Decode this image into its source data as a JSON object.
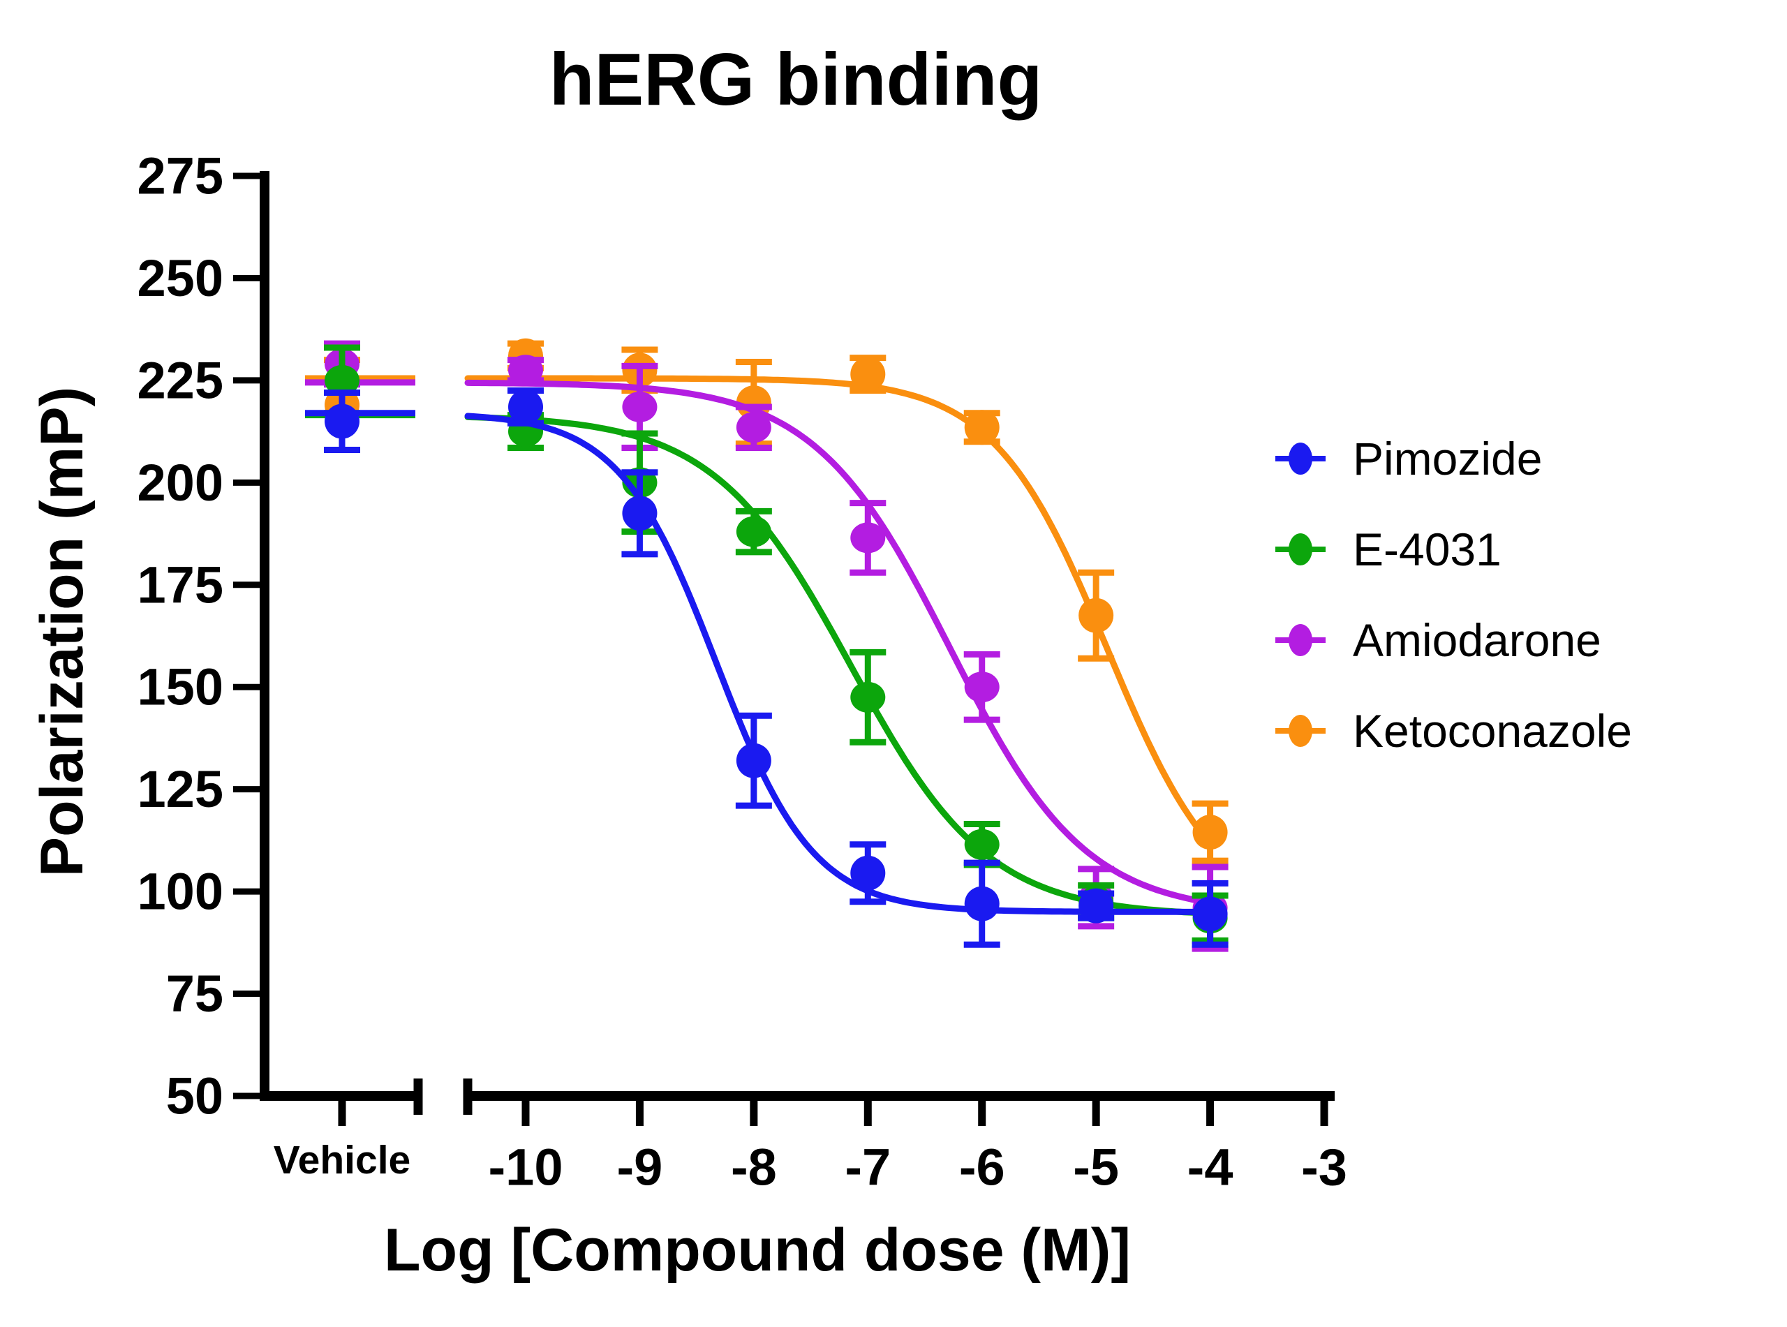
{
  "chart_data": {
    "type": "scatter-line",
    "title": "hERG binding",
    "xlabel": "Log [Compound dose (M)]",
    "ylabel": "Polarization (mP)",
    "x_axis": {
      "vehicle_label": "Vehicle",
      "tick_logs": [
        -10,
        -9,
        -8,
        -7,
        -6,
        -5,
        -4,
        -3
      ],
      "tick_labels": [
        "-10",
        "-9",
        "-8",
        "-7",
        "-6",
        "-5",
        "-4",
        "-3"
      ],
      "broken_axis": true
    },
    "y_axis": {
      "ticks": [
        275,
        250,
        225,
        200,
        175,
        150,
        125,
        100,
        75,
        50
      ],
      "range": [
        50,
        275
      ],
      "grid": false
    },
    "legend": {
      "position": "right",
      "entries": [
        "Pimozide",
        "E-4031",
        "Amiodarone",
        "Ketoconazole"
      ]
    },
    "series": [
      {
        "name": "Pimozide",
        "color": "#1A1AF0",
        "marker": "circle",
        "vehicle": {
          "y": 215,
          "err": 7
        },
        "x": [
          -10,
          -9,
          -8,
          -7,
          -6,
          -5,
          -4
        ],
        "y": [
          218.5,
          192.5,
          132,
          104.5,
          97,
          96.5,
          94.5
        ],
        "err": [
          4,
          10,
          11,
          7,
          10,
          3,
          7.5
        ],
        "fit": {
          "top": 217,
          "bottom": 95,
          "logec50": -8.33,
          "hill": 1.02
        }
      },
      {
        "name": "E-4031",
        "color": "#0CA60C",
        "marker": "ellipse",
        "vehicle": {
          "y": 225,
          "err": 8
        },
        "x": [
          -10,
          -9,
          -8,
          -7,
          -6,
          -5,
          -4
        ],
        "y": [
          212.5,
          200,
          188,
          147.5,
          111.5,
          97.5,
          93.5
        ],
        "err": [
          4,
          12,
          5,
          11,
          5,
          4,
          5.5
        ],
        "fit": {
          "top": 216.5,
          "bottom": 94,
          "logec50": -7.15,
          "hill": 0.72
        }
      },
      {
        "name": "Amiodarone",
        "color": "#B31DE1",
        "marker": "ellipse",
        "vehicle": {
          "y": 229,
          "err": 5
        },
        "x": [
          -10,
          -9,
          -8,
          -7,
          -6,
          -5,
          -4
        ],
        "y": [
          227.5,
          218.5,
          213.5,
          186.5,
          150,
          98.5,
          96
        ],
        "err": [
          2.5,
          10,
          5,
          8.5,
          8,
          7,
          10
        ],
        "fit": {
          "top": 224.5,
          "bottom": 94.5,
          "logec50": -6.28,
          "hill": 0.73
        }
      },
      {
        "name": "Ketoconazole",
        "color": "#FA8F0F",
        "marker": "circle",
        "vehicle": {
          "y": 219,
          "err": 11
        },
        "x": [
          -10,
          -9,
          -8,
          -7,
          -6,
          -5,
          -4
        ],
        "y": [
          231,
          227.5,
          219.5,
          226.5,
          213.5,
          167.5,
          114.5
        ],
        "err": [
          3,
          5,
          10,
          4,
          3.5,
          10.5,
          7
        ],
        "fit": {
          "top": 225.5,
          "bottom": 93,
          "logec50": -4.9,
          "hill": 0.87
        }
      }
    ]
  }
}
